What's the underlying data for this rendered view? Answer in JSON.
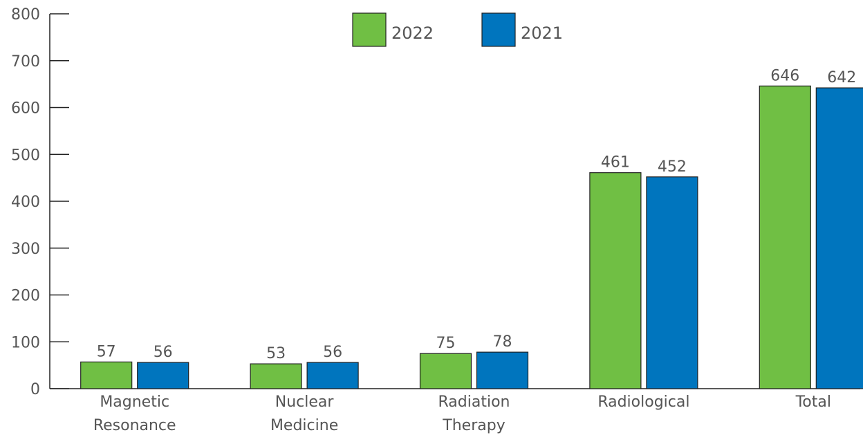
{
  "chart_data": {
    "type": "bar",
    "title": "",
    "xlabel": "",
    "ylabel": "",
    "ylim": [
      0,
      800
    ],
    "yticks": [
      0,
      100,
      200,
      300,
      400,
      500,
      600,
      700,
      800
    ],
    "grid": false,
    "legend_position": "top",
    "categories": [
      [
        "Magnetic",
        "Resonance"
      ],
      [
        "Nuclear",
        "Medicine"
      ],
      [
        "Radiation",
        "Therapy"
      ],
      [
        "Radiological"
      ],
      [
        "Total"
      ]
    ],
    "series": [
      {
        "name": "2022",
        "color": "#70BF44",
        "values": [
          57,
          53,
          75,
          461,
          646
        ]
      },
      {
        "name": "2021",
        "color": "#0075BE",
        "values": [
          56,
          56,
          78,
          452,
          642
        ]
      }
    ]
  }
}
